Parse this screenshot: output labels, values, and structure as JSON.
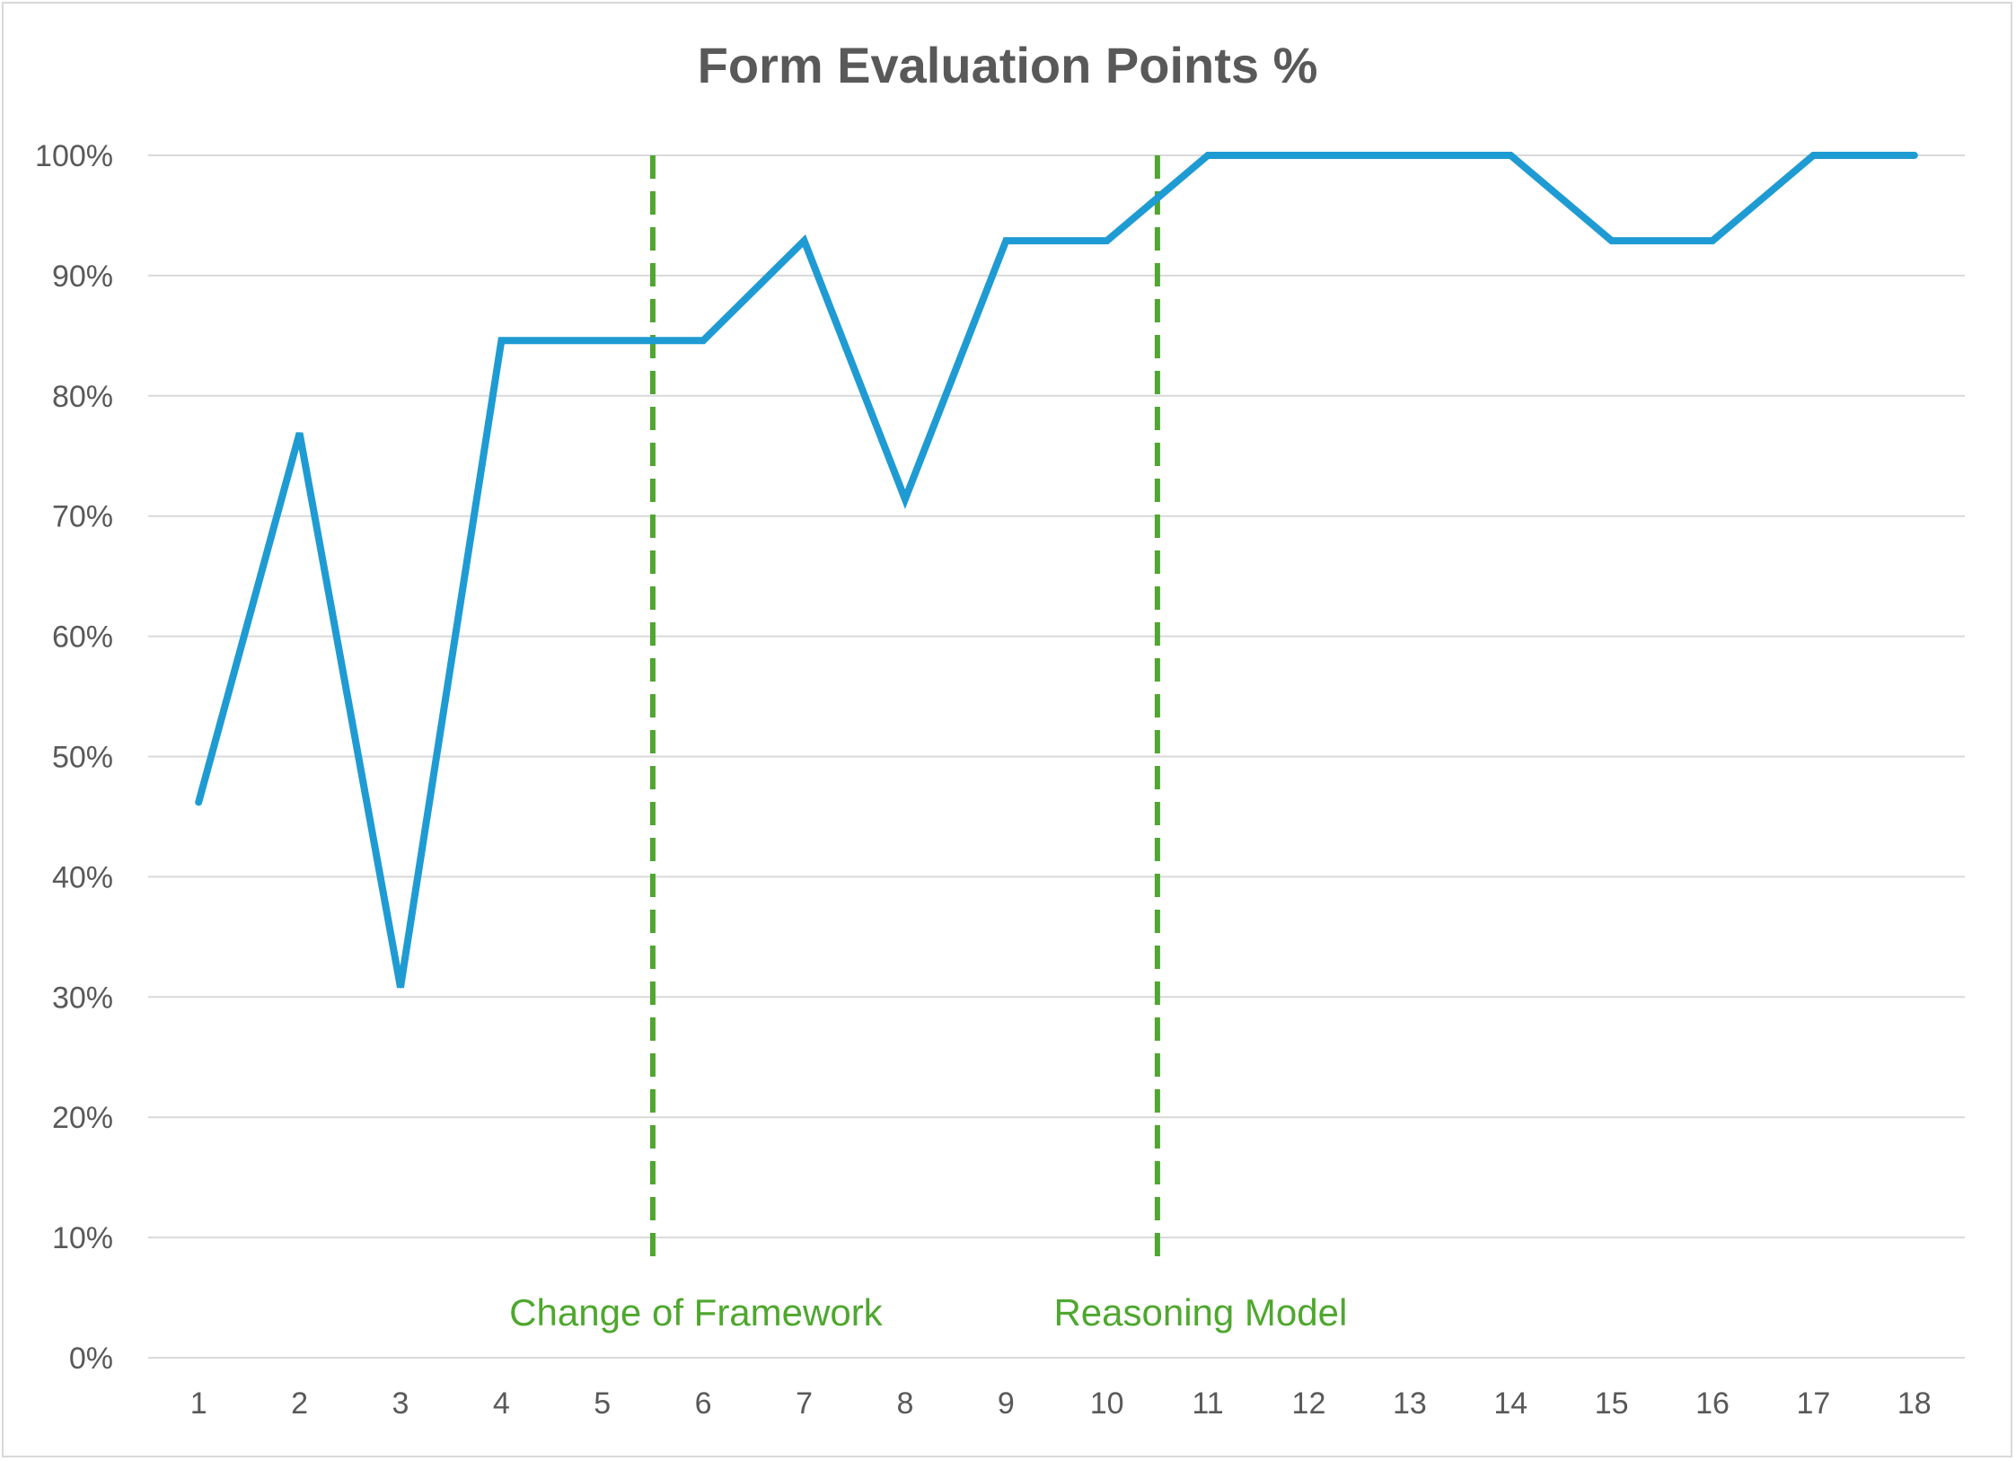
{
  "chart_data": {
    "type": "line",
    "title": "Form Evaluation Points %",
    "xlabel": "",
    "ylabel": "",
    "categories": [
      "1",
      "2",
      "3",
      "4",
      "5",
      "6",
      "7",
      "8",
      "9",
      "10",
      "11",
      "12",
      "13",
      "14",
      "15",
      "16",
      "17",
      "18"
    ],
    "series": [
      {
        "values": [
          46.2,
          76.9,
          30.8,
          84.6,
          84.6,
          84.6,
          92.9,
          71.4,
          92.9,
          92.9,
          100,
          100,
          100,
          100,
          92.9,
          92.9,
          100,
          100
        ],
        "color": "#1f9bd3"
      }
    ],
    "ylim": [
      0,
      100
    ],
    "yticks": [
      "0%",
      "10%",
      "20%",
      "30%",
      "40%",
      "50%",
      "60%",
      "70%",
      "80%",
      "90%",
      "100%"
    ],
    "grid": true,
    "legend": "none",
    "annotations": [
      {
        "text": "Change of Framework",
        "x_between": [
          5,
          6
        ],
        "color": "#4ea72e",
        "style": "dashed"
      },
      {
        "text": "Reasoning Model",
        "x_between": [
          10,
          11
        ],
        "color": "#4ea72e",
        "style": "dashed"
      }
    ],
    "colors": {
      "gridline": "#d9d9d9",
      "axis_text": "#595959",
      "border": "#d9d9d9"
    }
  }
}
